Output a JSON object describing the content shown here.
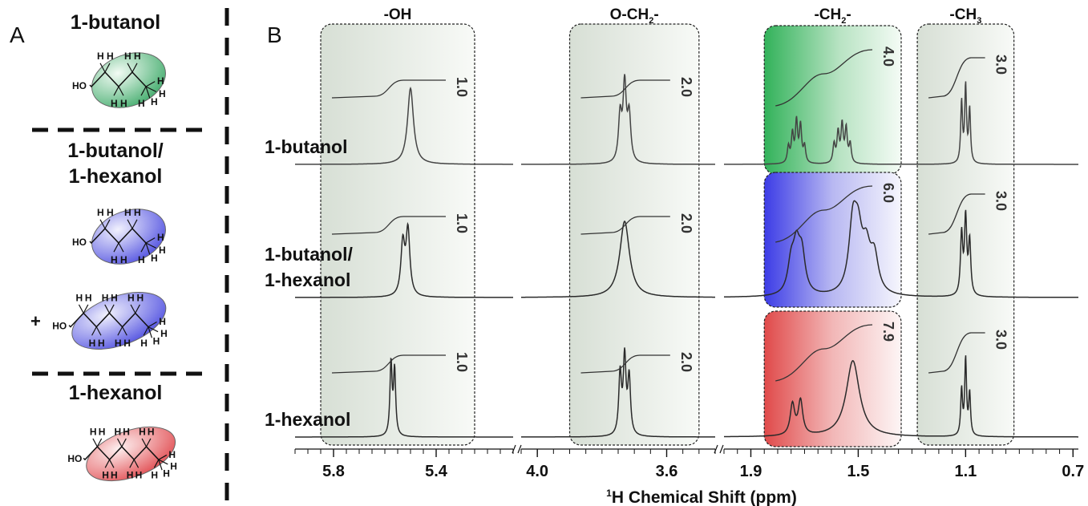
{
  "panel_a": {
    "letter": "A",
    "molecules": [
      {
        "name": "1-butanol",
        "color": "#3aa866",
        "hydroxyl": "HO",
        "hydrogen": "H"
      },
      {
        "name": "1-butanol/\n1-hexanol",
        "color": "#4a4adf",
        "hydroxyl": "HO",
        "hydrogen": "H",
        "plus": "+"
      },
      {
        "name": "1-hexanol",
        "color": "#e0474c",
        "hydroxyl": "HO",
        "hydrogen": "H"
      }
    ]
  },
  "chart_data": {
    "type": "line",
    "panel_letter": "B",
    "xlabel_sup": "1",
    "xlabel": "H Chemical Shift (ppm)",
    "x_segments": [
      {
        "range": [
          5.95,
          5.1
        ],
        "ticks": [
          "5.8",
          "5.4"
        ],
        "tick_values": [
          5.8,
          5.4
        ]
      },
      {
        "range": [
          4.05,
          3.45
        ],
        "ticks": [
          "4.0",
          "3.6"
        ],
        "tick_values": [
          4.0,
          3.6
        ]
      },
      {
        "range": [
          2.0,
          0.68
        ],
        "ticks": [
          "1.9",
          "1.5",
          "1.1",
          "0.7"
        ],
        "tick_values": [
          1.9,
          1.5,
          1.1,
          0.7
        ]
      }
    ],
    "regions": [
      {
        "label": "-OH",
        "range": [
          5.85,
          5.25
        ]
      },
      {
        "label": "O-CH",
        "sub": "2",
        "suffix": "-",
        "range": [
          3.9,
          3.5
        ]
      },
      {
        "label": "-CH",
        "sub": "2",
        "suffix": "-",
        "range": [
          1.85,
          1.34
        ],
        "colored": true
      },
      {
        "label": "-CH",
        "sub": "3",
        "suffix": "",
        "range": [
          1.28,
          0.92
        ]
      }
    ],
    "series": [
      {
        "name": "1-butanol",
        "ch2_color": "#32b25a",
        "peaks": [
          {
            "center": 5.5,
            "height": 1.0,
            "multiplet": [
              [
                0,
                1
              ]
            ],
            "width": 0.014
          },
          {
            "center": 3.73,
            "height": 1.0,
            "multiplet": [
              [
                -0.014,
                0.6
              ],
              [
                0,
                1
              ],
              [
                0.014,
                0.6
              ]
            ],
            "width": 0.006
          },
          {
            "center": 1.73,
            "height": 0.6,
            "multiplet": [
              [
                -0.03,
                0.4
              ],
              [
                -0.015,
                0.9
              ],
              [
                0,
                1
              ],
              [
                0.015,
                0.7
              ],
              [
                0.03,
                0.4
              ]
            ],
            "width": 0.005
          },
          {
            "center": 1.56,
            "height": 0.55,
            "multiplet": [
              [
                -0.03,
                0.5
              ],
              [
                -0.015,
                0.9
              ],
              [
                0,
                1
              ],
              [
                0.015,
                0.8
              ],
              [
                0.03,
                0.5
              ]
            ],
            "width": 0.005
          },
          {
            "center": 1.1,
            "height": 1.0,
            "multiplet": [
              [
                -0.015,
                0.7
              ],
              [
                0,
                1
              ],
              [
                0.015,
                0.8
              ]
            ],
            "width": 0.004
          }
        ],
        "integrals": [
          {
            "region": 0,
            "value": "1.0"
          },
          {
            "region": 1,
            "value": "2.0"
          },
          {
            "region": 2,
            "value": "4.0"
          },
          {
            "region": 3,
            "value": "3.0"
          }
        ]
      },
      {
        "name": "1-butanol/\n1-hexanol",
        "ch2_color": "#3c3ce6",
        "peaks": [
          {
            "center": 5.52,
            "height": 0.85,
            "multiplet": [
              [
                -0.01,
                1
              ],
              [
                0.01,
                0.8
              ]
            ],
            "width": 0.009
          },
          {
            "center": 3.73,
            "height": 1.0,
            "multiplet": [
              [
                0,
                1
              ]
            ],
            "width": 0.018
          },
          {
            "center": 1.73,
            "height": 0.55,
            "multiplet": [
              [
                -0.02,
                0.9
              ],
              [
                0,
                1
              ],
              [
                0.02,
                0.7
              ]
            ],
            "width": 0.015
          },
          {
            "center": 1.52,
            "height": 0.85,
            "multiplet": [
              [
                -0.08,
                0.55
              ],
              [
                -0.05,
                0.6
              ],
              [
                -0.02,
                0.75
              ],
              [
                0,
                1
              ]
            ],
            "width": 0.018
          },
          {
            "center": 1.1,
            "height": 1.0,
            "multiplet": [
              [
                -0.015,
                0.7
              ],
              [
                0,
                1
              ],
              [
                0.015,
                0.8
              ]
            ],
            "width": 0.005
          }
        ],
        "integrals": [
          {
            "region": 0,
            "value": "1.0"
          },
          {
            "region": 1,
            "value": "2.0"
          },
          {
            "region": 2,
            "value": "6.0"
          },
          {
            "region": 3,
            "value": "3.0"
          }
        ]
      },
      {
        "name": "1-hexanol",
        "ch2_color": "#e04a4a",
        "peaks": [
          {
            "center": 5.57,
            "height": 0.95,
            "multiplet": [
              [
                -0.008,
                0.9
              ],
              [
                0.006,
                1
              ]
            ],
            "width": 0.005
          },
          {
            "center": 3.73,
            "height": 1.0,
            "multiplet": [
              [
                -0.014,
                0.75
              ],
              [
                0,
                1
              ],
              [
                0.014,
                0.8
              ]
            ],
            "width": 0.005
          },
          {
            "center": 1.73,
            "height": 0.45,
            "multiplet": [
              [
                -0.015,
                1
              ],
              [
                0.015,
                0.9
              ]
            ],
            "width": 0.01
          },
          {
            "center": 1.52,
            "height": 1.0,
            "multiplet": [
              [
                0,
                1
              ]
            ],
            "width": 0.03
          },
          {
            "center": 1.1,
            "height": 1.0,
            "multiplet": [
              [
                -0.015,
                0.55
              ],
              [
                0,
                1
              ],
              [
                0.015,
                0.6
              ]
            ],
            "width": 0.004
          }
        ],
        "integrals": [
          {
            "region": 0,
            "value": "1.0"
          },
          {
            "region": 1,
            "value": "2.0"
          },
          {
            "region": 2,
            "value": "7.9"
          },
          {
            "region": 3,
            "value": "3.0"
          }
        ]
      }
    ]
  }
}
